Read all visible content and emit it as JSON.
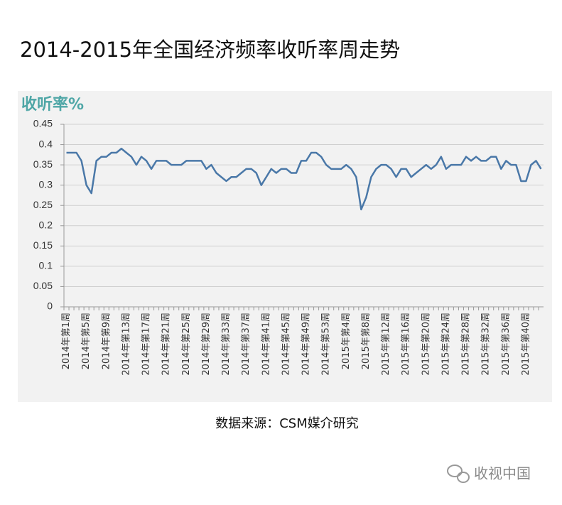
{
  "chart_data": {
    "type": "line",
    "title": "2014-2015年全国经济频率收听率周走势",
    "y_label": "收听率%",
    "source": "数据来源：CSM媒介研究",
    "watermark": "收视中国",
    "color": "#4a78a8",
    "ylim": [
      0,
      0.45
    ],
    "yticks": [
      0,
      0.05,
      0.1,
      0.15,
      0.2,
      0.25,
      0.3,
      0.35,
      0.4,
      0.45
    ],
    "grid": true,
    "categories": [
      "2014年第1周",
      null,
      null,
      null,
      "2014年第5周",
      null,
      null,
      null,
      "2014年第9周",
      null,
      null,
      null,
      "2014年第13周",
      null,
      null,
      null,
      "2014年第17周",
      null,
      null,
      null,
      "2014年第21周",
      null,
      null,
      null,
      "2014年第25周",
      null,
      null,
      null,
      "2014年第29周",
      null,
      null,
      null,
      "2014年第33周",
      null,
      null,
      null,
      "2014年第37周",
      null,
      null,
      null,
      "2014年第41周",
      null,
      null,
      null,
      "2014年第45周",
      null,
      null,
      null,
      "2014年第49周",
      null,
      null,
      null,
      "2014年第53周",
      null,
      null,
      null,
      "2015年第4周",
      null,
      null,
      null,
      "2015年第8周",
      null,
      null,
      null,
      "2015年第12周",
      null,
      null,
      null,
      "2015年第16周",
      null,
      null,
      null,
      "2015年第20周",
      null,
      null,
      null,
      "2015年第24周",
      null,
      null,
      null,
      "2015年第28周",
      null,
      null,
      null,
      "2015年第32周",
      null,
      null,
      null,
      "2015年第36周",
      null,
      null,
      null,
      "2015年第40周",
      null,
      null,
      null
    ],
    "values": [
      0.38,
      0.38,
      0.38,
      0.36,
      0.3,
      0.28,
      0.36,
      0.37,
      0.37,
      0.38,
      0.38,
      0.39,
      0.38,
      0.37,
      0.35,
      0.37,
      0.36,
      0.34,
      0.36,
      0.36,
      0.36,
      0.35,
      0.35,
      0.35,
      0.36,
      0.36,
      0.36,
      0.36,
      0.34,
      0.35,
      0.33,
      0.32,
      0.31,
      0.32,
      0.32,
      0.33,
      0.34,
      0.34,
      0.33,
      0.3,
      0.32,
      0.34,
      0.33,
      0.34,
      0.34,
      0.33,
      0.33,
      0.36,
      0.36,
      0.38,
      0.38,
      0.37,
      0.35,
      0.34,
      0.34,
      0.34,
      0.35,
      0.34,
      0.32,
      0.24,
      0.27,
      0.32,
      0.34,
      0.35,
      0.35,
      0.34,
      0.32,
      0.34,
      0.34,
      0.32,
      0.33,
      0.34,
      0.35,
      0.34,
      0.35,
      0.37,
      0.34,
      0.35,
      0.35,
      0.35,
      0.37,
      0.36,
      0.37,
      0.36,
      0.36,
      0.37,
      0.37,
      0.34,
      0.36,
      0.35,
      0.35,
      0.31,
      0.31,
      0.35,
      0.36,
      0.34
    ]
  }
}
